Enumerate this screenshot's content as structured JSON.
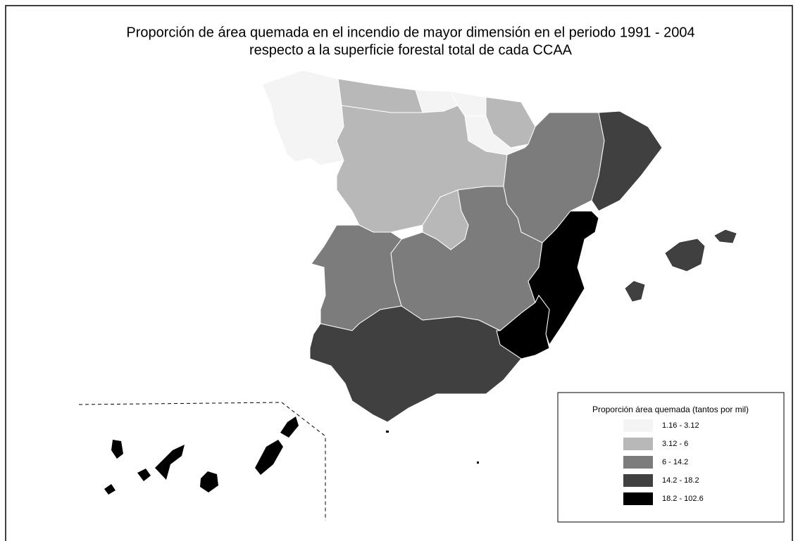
{
  "title": [
    "Proporción de área quemada en el incendio de mayor dimensión en el periodo 1991 - 2004",
    "respecto a la superficie forestal total de cada CCAA"
  ],
  "legend": {
    "title": "Proporción área quemada (tantos por mil)",
    "classes": [
      {
        "label": "1.16 - 3.12",
        "color": "#f4f4f4"
      },
      {
        "label": "3.12 - 6",
        "color": "#b8b8b8"
      },
      {
        "label": "6 - 14.2",
        "color": "#7c7c7c"
      },
      {
        "label": "14.2 - 18.2",
        "color": "#404040"
      },
      {
        "label": "18.2 - 102.6",
        "color": "#000000"
      }
    ]
  }
}
